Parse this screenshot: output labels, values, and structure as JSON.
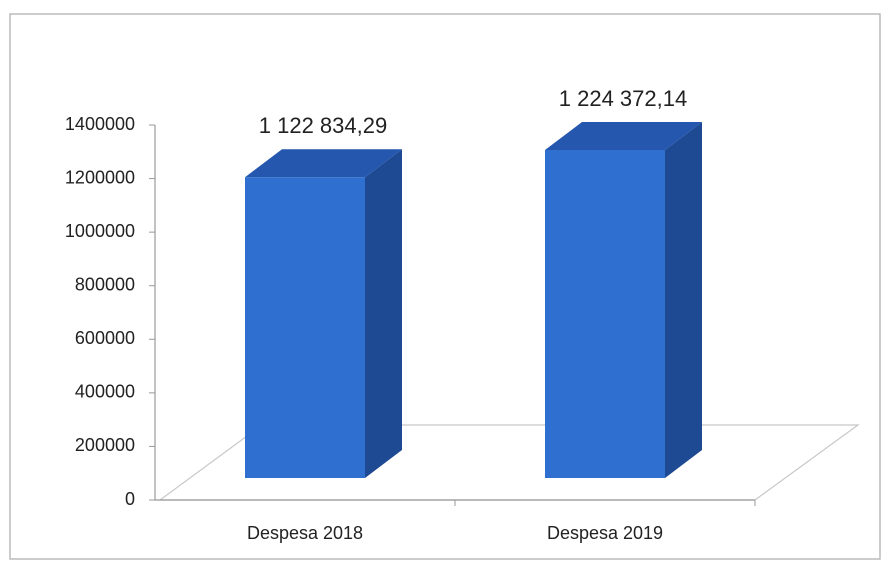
{
  "chart_data": {
    "type": "bar3d",
    "categories": [
      "Despesa 2018",
      "Despesa 2019"
    ],
    "values": [
      1122834.29,
      1224372.14
    ],
    "value_labels": [
      "1 122 834,29",
      "1 224 372,14"
    ],
    "color": "#2e6fd0",
    "ylim": [
      0,
      1400000
    ],
    "yticks": [
      0,
      200000,
      400000,
      600000,
      800000,
      1000000,
      1200000,
      1400000
    ]
  }
}
